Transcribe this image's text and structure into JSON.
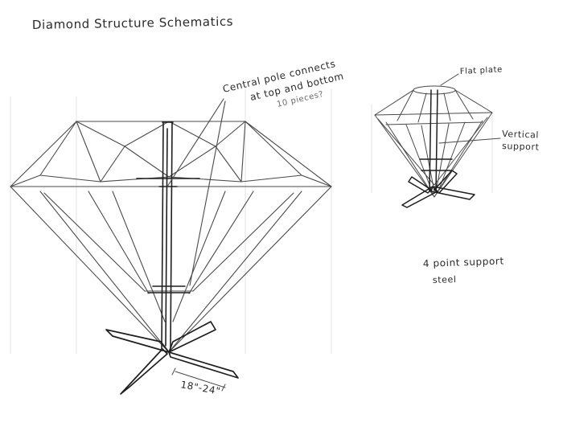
{
  "sketch": {
    "title": "Diamond Structure Schematics",
    "notes": {
      "central_pole_line1": "Central pole connects",
      "central_pole_line2": "at top and bottom",
      "central_pole_line3": "10 pieces?",
      "flat_plate": "Flat plate",
      "vertical_support_line1": "Vertical",
      "vertical_support_line2": "support",
      "four_point_line1": "4 point support",
      "four_point_line2": "steel",
      "dimension": "18\"-24\""
    }
  }
}
